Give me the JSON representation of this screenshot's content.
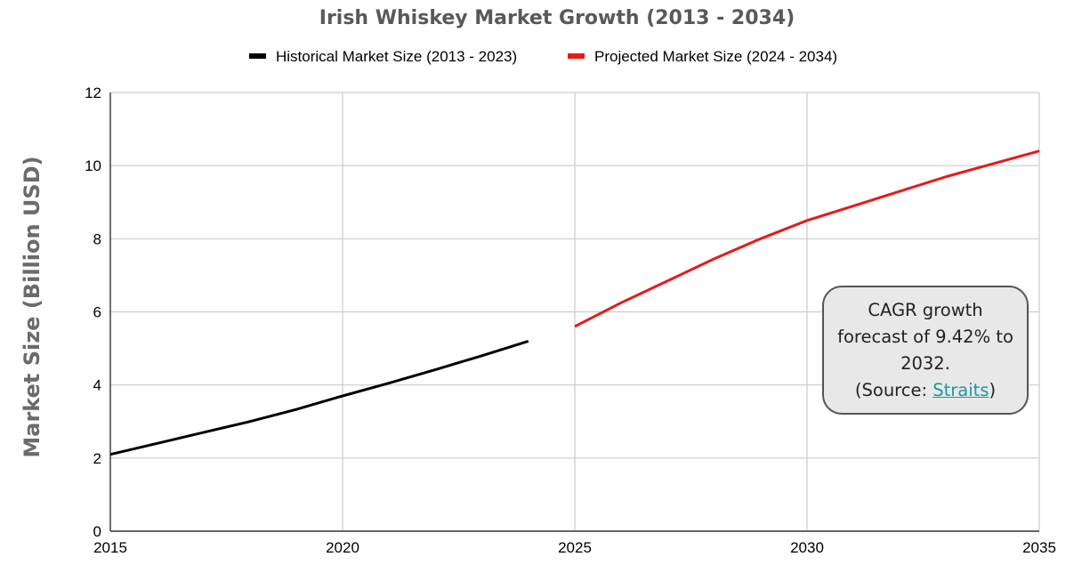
{
  "chart_data": {
    "type": "line",
    "title": "Irish Whiskey Market Growth (2013 - 2034)",
    "ylabel": "Market Size (Billion USD)",
    "xlabel": "",
    "xlim": [
      2015,
      2035
    ],
    "ylim": [
      0,
      12
    ],
    "xticks": [
      2015,
      2020,
      2025,
      2030,
      2035
    ],
    "yticks": [
      0,
      2,
      4,
      6,
      8,
      10,
      12
    ],
    "grid": true,
    "legend_position": "top",
    "series": [
      {
        "name": "Historical Market Size (2013 - 2023)",
        "color": "#000000",
        "x": [
          2015,
          2016,
          2017,
          2018,
          2019,
          2020,
          2021,
          2022,
          2023,
          2024
        ],
        "y": [
          2.1,
          2.4,
          2.7,
          3.0,
          3.33,
          3.7,
          4.05,
          4.42,
          4.8,
          5.2
        ]
      },
      {
        "name": "Projected Market Size (2024 - 2034)",
        "color": "#e8191b",
        "x": [
          2025,
          2026,
          2027,
          2028,
          2029,
          2030,
          2031,
          2032,
          2033,
          2034,
          2035
        ],
        "y": [
          5.6,
          6.25,
          6.85,
          7.45,
          8.0,
          8.5,
          8.9,
          9.3,
          9.7,
          10.05,
          10.4
        ]
      }
    ]
  },
  "annotation": {
    "line1": "CAGR growth",
    "line2": "forecast of 9.42% to",
    "line3": "2032.",
    "source_prefix": "(Source: ",
    "source_link": "Straits",
    "source_suffix": ")"
  }
}
